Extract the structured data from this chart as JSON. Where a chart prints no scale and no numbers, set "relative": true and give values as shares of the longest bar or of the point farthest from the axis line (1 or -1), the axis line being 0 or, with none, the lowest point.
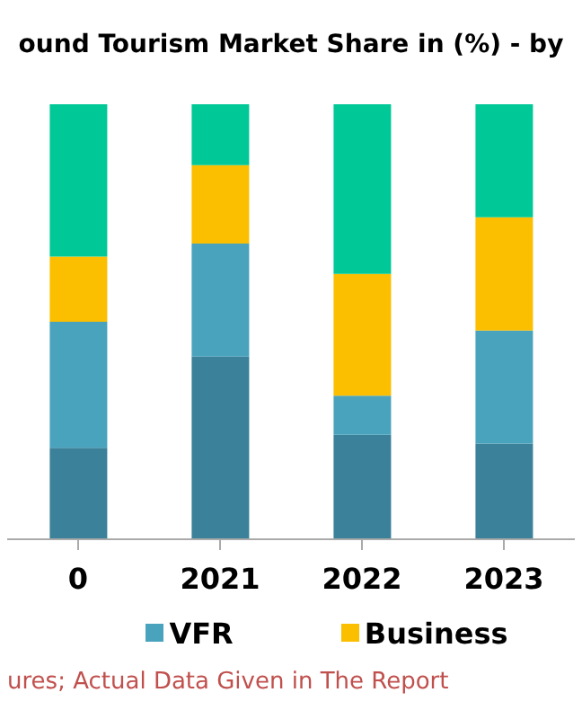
{
  "chart_data": {
    "type": "bar",
    "title": "ound Tourism Market Share in (%) - by",
    "categories": [
      "0",
      "2021",
      "2022",
      "2023"
    ],
    "stacked": true,
    "relative": true,
    "legend": "bottom",
    "grid": false,
    "series": [
      {
        "color": "#3a8199",
        "values": [
          0.21,
          0.42,
          0.24,
          0.22
        ]
      },
      {
        "name": "VFR",
        "color": "#4aa3bd",
        "values": [
          0.29,
          0.26,
          0.09,
          0.26
        ]
      },
      {
        "name": "Business",
        "color": "#fbbf00",
        "values": [
          0.15,
          0.18,
          0.28,
          0.26
        ]
      },
      {
        "color": "#00c896",
        "values": [
          0.35,
          0.14,
          0.39,
          0.26
        ]
      }
    ],
    "annotations": [
      "ures; Actual Data Given in The Report"
    ]
  }
}
